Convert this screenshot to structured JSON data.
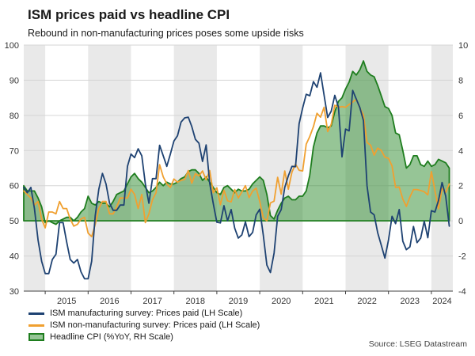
{
  "header": {
    "title": "ISM prices paid vs headline CPI",
    "subtitle": "Rebound in non-manufacturing prices poses some upside risks"
  },
  "source": "Source: LSEG Datastream",
  "legend": [
    {
      "label": "ISM manufacturing survey: Prices paid (LH Scale)",
      "type": "line",
      "color": "#1e4272"
    },
    {
      "label": "ISM non-manufacturing survey: Prices paid (LH Scale)",
      "type": "line",
      "color": "#f0a030"
    },
    {
      "label": "Headline CPI (%YoY, RH Scale)",
      "type": "area",
      "color": "#1e7d1e",
      "fill": "rgba(46,139,46,0.5)"
    }
  ],
  "chart_data": {
    "type": "line",
    "title": "ISM prices paid vs headline CPI",
    "x_start": 2014.5,
    "x_step_months": 1,
    "x_range": [
      2014.5,
      2024.5
    ],
    "x_ticks": [
      2015,
      2016,
      2017,
      2018,
      2019,
      2020,
      2021,
      2022,
      2023,
      2024
    ],
    "left_axis": {
      "range": [
        30,
        100
      ],
      "ticks": [
        30,
        40,
        50,
        60,
        70,
        80,
        90,
        100
      ]
    },
    "right_axis": {
      "range": [
        -4,
        10
      ],
      "ticks": [
        -4,
        -2,
        0,
        2,
        4,
        6,
        8,
        10
      ]
    },
    "style": {
      "band_color": "#e9e9e9",
      "grid_color": "#d6d6d6",
      "axis_color": "#404040",
      "tick_color": "#333333"
    },
    "series": [
      {
        "name": "ISM manufacturing survey: Prices paid",
        "axis": "left",
        "color": "#1e4272",
        "values": [
          59.5,
          58,
          59.5,
          53.5,
          44.5,
          38.5,
          35,
          35,
          39,
          40.5,
          49.5,
          49.5,
          44,
          39,
          38,
          39,
          35.5,
          33.5,
          33.5,
          38.5,
          51.5,
          59,
          63.5,
          60.5,
          55,
          53,
          53,
          54.5,
          54.5,
          65.5,
          69,
          68,
          70.5,
          68.5,
          60.5,
          55,
          62,
          62,
          71.5,
          68.5,
          65.5,
          69,
          72.7,
          74.2,
          78.1,
          79.3,
          79.5,
          76.8,
          73.2,
          72.1,
          66.9,
          71.6,
          60.7,
          54.9,
          49.6,
          49.4,
          54.3,
          50,
          53.2,
          47.9,
          45.1,
          46,
          49.7,
          45.5,
          46.7,
          51.7,
          53.3,
          45.9,
          37.4,
          35.3,
          40.8,
          51.3,
          53.2,
          59.5,
          62.8,
          65.5,
          65.4,
          77.6,
          82.1,
          86,
          85.6,
          89.6,
          88,
          92.1,
          85.7,
          79.4,
          81.2,
          85.7,
          82.4,
          68.2,
          76.1,
          75.6,
          87.1,
          84.6,
          82.2,
          78.5,
          60,
          52.5,
          51.7,
          46.6,
          43,
          39.4,
          44.5,
          51.3,
          49.2,
          53.2,
          44.2,
          41.8,
          42.6,
          48.4,
          43.8,
          45.1,
          49.9,
          45.2,
          52.9,
          52.5,
          55.8,
          60.9,
          57,
          48.5
        ]
      },
      {
        "name": "ISM non-manufacturing survey: Prices paid",
        "axis": "left",
        "color": "#f0a030",
        "values": [
          58.5,
          57.5,
          56.5,
          54.5,
          55.5,
          50.5,
          48,
          52.5,
          52.5,
          52,
          55.5,
          53.5,
          53.5,
          50.5,
          48.5,
          49,
          50.5,
          51,
          46.5,
          45.5,
          49,
          53.5,
          55.5,
          55.5,
          52,
          52,
          54,
          56.5,
          56.5,
          56.5,
          59,
          57.5,
          53.5,
          57.5,
          49.5,
          52,
          56,
          58,
          66,
          62.5,
          60.5,
          59.5,
          61.9,
          61,
          61.5,
          61.8,
          64.3,
          60.7,
          63.4,
          62.8,
          64.2,
          61.7,
          64.3,
          58,
          59.4,
          54.6,
          58.7,
          55.7,
          55.4,
          58.9,
          56.5,
          58.2,
          60,
          56.6,
          58.5,
          59.3,
          55.5,
          50.8,
          50,
          55.1,
          55.6,
          62.4,
          57.6,
          64.2,
          59,
          63.9,
          66.1,
          64.4,
          64.2,
          71.8,
          74,
          76.8,
          80.6,
          79.5,
          82.3,
          75.4,
          77.5,
          82.9,
          82.3,
          82.5,
          82.3,
          83.1,
          83.8,
          84.6,
          82.1,
          80.1,
          72.3,
          71.5,
          68.7,
          70.7,
          70,
          68.1,
          67.8,
          65.6,
          59.5,
          59.6,
          56.2,
          54.1,
          56.8,
          58.9,
          58.9,
          58.6,
          58.3,
          57.4,
          64,
          58.6,
          53.4,
          59.2,
          58.1,
          60.5
        ]
      },
      {
        "name": "Headline CPI (%YoY)",
        "axis": "right",
        "color": "#1e7d1e",
        "fill": "rgba(46,139,46,0.5)",
        "area": true,
        "baseline": 0,
        "values": [
          2,
          1.7,
          1.7,
          1.7,
          1.3,
          0.8,
          -0.1,
          0,
          -0.1,
          -0.2,
          0,
          0.1,
          0.2,
          0.2,
          0,
          0.2,
          0.5,
          0.7,
          1.4,
          1,
          0.9,
          1.1,
          1,
          1,
          0.8,
          1.1,
          1.5,
          1.6,
          1.7,
          2.1,
          2.5,
          2.7,
          2.4,
          2.2,
          1.9,
          1.6,
          1.7,
          1.9,
          2.2,
          2,
          2.2,
          2.1,
          2.1,
          2.2,
          2.4,
          2.5,
          2.8,
          2.9,
          2.9,
          2.7,
          2.3,
          2.5,
          2.2,
          1.9,
          1.6,
          1.5,
          1.9,
          2,
          1.8,
          1.6,
          1.8,
          1.7,
          1.7,
          1.8,
          2.1,
          2.3,
          2.5,
          2.3,
          1.5,
          0.3,
          0.1,
          0.6,
          1,
          1.3,
          1.4,
          1.2,
          1.2,
          1.4,
          1.4,
          1.7,
          2.6,
          4.2,
          5,
          5.4,
          5.4,
          5.3,
          5.4,
          6.2,
          6.8,
          7,
          7.5,
          7.9,
          8.5,
          8.3,
          8.6,
          9.1,
          8.5,
          8.3,
          8.2,
          7.7,
          7.1,
          6.5,
          6.4,
          6,
          5,
          4.9,
          4,
          3,
          3.2,
          3.7,
          3.7,
          3.2,
          3.1,
          3.4,
          3.1,
          3.2,
          3.5,
          3.4,
          3.3,
          3
        ]
      }
    ]
  }
}
